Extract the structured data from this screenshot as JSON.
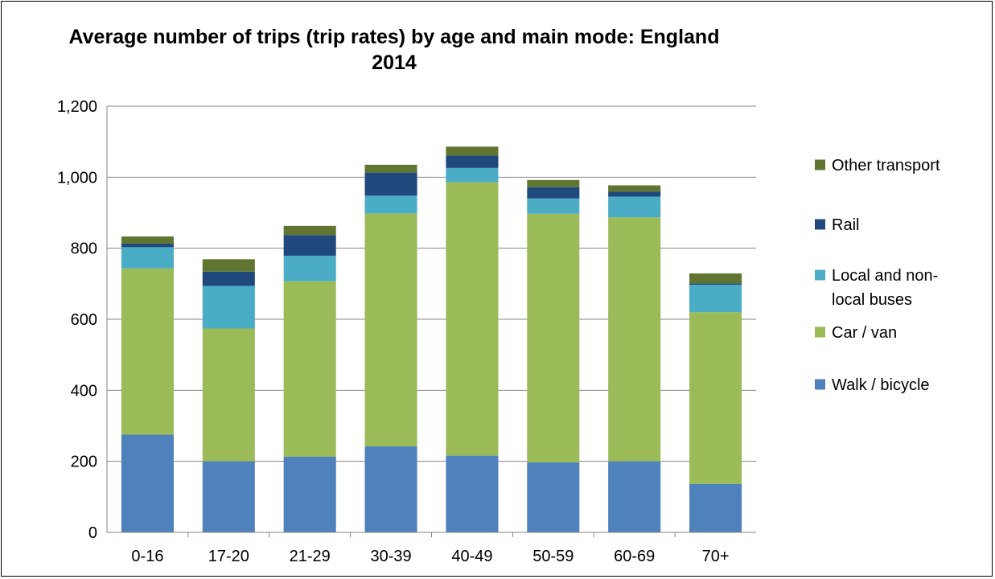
{
  "chart_data": {
    "type": "bar",
    "stacked": true,
    "title": "Average number of trips (trip rates) by age and main mode: England 2014",
    "title_lines": [
      "Average number of trips (trip rates) by age and main mode: England",
      "2014"
    ],
    "xlabel": "",
    "ylabel": "",
    "ylim": [
      0,
      1200
    ],
    "yticks": [
      0,
      200,
      400,
      600,
      800,
      1000,
      1200
    ],
    "ytick_labels": [
      "0",
      "200",
      "400",
      "600",
      "800",
      "1,000",
      "1,200"
    ],
    "grid": true,
    "legend_position": "right",
    "categories": [
      "0-16",
      "17-20",
      "21-29",
      "30-39",
      "40-49",
      "50-59",
      "60-69",
      "70+"
    ],
    "series": [
      {
        "name": "Walk / bicycle",
        "color": "#4F81BD",
        "values": [
          275,
          200,
          213,
          242,
          216,
          197,
          200,
          136
        ]
      },
      {
        "name": "Car / van",
        "color": "#9BBB59",
        "values": [
          468,
          374,
          494,
          656,
          770,
          700,
          687,
          484
        ]
      },
      {
        "name": "Local and non-local buses",
        "color": "#4BACC6",
        "values": [
          60,
          120,
          72,
          50,
          40,
          43,
          58,
          77
        ]
      },
      {
        "name": "Rail",
        "color": "#1F497D",
        "values": [
          10,
          40,
          58,
          65,
          35,
          32,
          14,
          4
        ]
      },
      {
        "name": "Other transport",
        "color": "#5F7530",
        "values": [
          20,
          35,
          26,
          22,
          25,
          20,
          18,
          28
        ]
      }
    ],
    "legend": {
      "order": [
        "Other transport",
        "Rail",
        "Local and non-local buses",
        "Car / van",
        "Walk / bicycle"
      ],
      "wrapped_lines": {
        "Local and non-local buses": [
          "Local and non-",
          "local buses"
        ]
      }
    }
  }
}
